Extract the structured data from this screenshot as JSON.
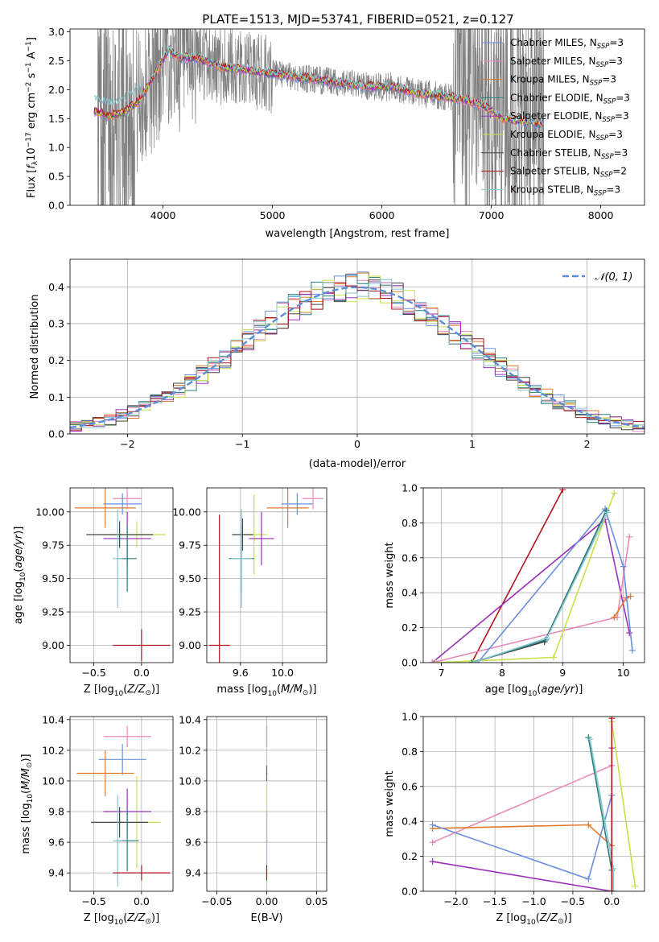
{
  "figure_title": "PLATE=1513, MJD=53741, FIBERID=0521, z=0.127",
  "colors": {
    "grid": "#b0b0b0",
    "gray_spectrum": "#808080",
    "normal_curve": "#5b8ed8"
  },
  "chart_data": [
    {
      "id": "spectrum",
      "type": "line",
      "title": "PLATE=1513, MJD=53741, FIBERID=0521, z=0.127",
      "xlabel": "wavelength [Angstrom, rest frame]",
      "ylabel": "Flux [f_λ 10^-17 erg cm^-2 s^-1 A^-1]",
      "xlim": [
        3150,
        8400
      ],
      "ylim": [
        0,
        3.05
      ],
      "xticks": [
        4000,
        5000,
        6000,
        7000,
        8000
      ],
      "yticks": [
        0.0,
        0.5,
        1.0,
        1.5,
        2.0,
        2.5,
        3.0
      ],
      "grid": false,
      "legend_position": "top-right",
      "legend": [
        {
          "label": "Chabrier MILES, N",
          "sub": "SSP",
          "tail": "=3",
          "color": "#6a8fe0"
        },
        {
          "label": "Salpeter MILES, N",
          "sub": "SSP",
          "tail": "=3",
          "color": "#e88ab8"
        },
        {
          "label": "Kroupa MILES, N",
          "sub": "SSP",
          "tail": "=3",
          "color": "#e07a2e"
        },
        {
          "label": "Chabrier ELODIE, N",
          "sub": "SSP",
          "tail": "=3",
          "color": "#2a7f7f"
        },
        {
          "label": "Salpeter ELODIE, N",
          "sub": "SSP",
          "tail": "=3",
          "color": "#9b30b8"
        },
        {
          "label": "Kroupa ELODIE, N",
          "sub": "SSP",
          "tail": "=3",
          "color": "#c8e04a"
        },
        {
          "label": "Chabrier STELIB, N",
          "sub": "SSP",
          "tail": "=3",
          "color": "#444444"
        },
        {
          "label": "Salpeter STELIB, N",
          "sub": "SSP",
          "tail": "=2",
          "color": "#b0141c"
        },
        {
          "label": "Kroupa STELIB, N",
          "sub": "SSP",
          "tail": "=3",
          "color": "#86c8d0"
        }
      ],
      "model_curve": {
        "x": [
          3350,
          3500,
          3650,
          3800,
          3950,
          4050,
          4150,
          4300,
          4500,
          4700,
          4900,
          5100,
          5300,
          5500,
          5700,
          5900,
          6100,
          6300,
          6500,
          6700,
          6900,
          7100,
          7300,
          7500
        ],
        "y": [
          1.65,
          1.55,
          1.6,
          1.85,
          2.35,
          2.7,
          2.55,
          2.55,
          2.4,
          2.35,
          2.3,
          2.25,
          2.2,
          2.15,
          2.1,
          2.05,
          2.05,
          1.95,
          1.9,
          1.85,
          1.75,
          1.5,
          1.45,
          1.4
        ]
      }
    },
    {
      "id": "residuals",
      "type": "line",
      "xlabel": "(data-model)/error",
      "ylabel": "Normed distribution",
      "xlim": [
        -2.5,
        2.5
      ],
      "ylim": [
        0,
        0.475
      ],
      "xticks": [
        -2,
        -1,
        0,
        1,
        2
      ],
      "yticks": [
        0.0,
        0.1,
        0.2,
        0.3,
        0.4
      ],
      "grid": true,
      "legend_position": "top-right",
      "legend_label": "N(0,1)"
    },
    {
      "id": "age_vs_Z",
      "type": "scatter",
      "xlabel": "Z [log10(Z/Z⊙)]",
      "ylabel": "age [log10(age/yr)]",
      "xlim": [
        -0.75,
        0.33
      ],
      "ylim": [
        8.87,
        10.18
      ],
      "xticks": [
        -0.5,
        0.0
      ],
      "yticks": [
        9.0,
        9.25,
        9.5,
        9.75,
        10.0
      ],
      "points": [
        {
          "x": -0.15,
          "y": 10.1,
          "xerr": 0.15,
          "yerr": 0.08,
          "color": "#e88ab8"
        },
        {
          "x": -0.2,
          "y": 10.06,
          "xerr": 0.2,
          "yerr": 0.08,
          "color": "#6a8fe0"
        },
        {
          "x": -0.38,
          "y": 10.03,
          "xerr": 0.32,
          "yerr": 0.15,
          "color": "#e07a2e"
        },
        {
          "x": -0.05,
          "y": 9.83,
          "xerr": 0.3,
          "yerr": 0.1,
          "color": "#c8e04a"
        },
        {
          "x": -0.15,
          "y": 9.8,
          "xerr": 0.25,
          "yerr": 0.2,
          "color": "#9b30b8"
        },
        {
          "x": -0.23,
          "y": 9.83,
          "xerr": 0.35,
          "yerr": 0.1,
          "color": "#444444"
        },
        {
          "x": -0.15,
          "y": 9.65,
          "xerr": 0.1,
          "yerr": 0.25,
          "color": "#2a7f7f"
        },
        {
          "x": -0.25,
          "y": 9.65,
          "xerr": 0.05,
          "yerr": 0.37,
          "color": "#86c8d0"
        },
        {
          "x": 0.0,
          "y": 9.0,
          "xerr": 0.3,
          "yerr": 0.12,
          "color": "#b0141c"
        }
      ]
    },
    {
      "id": "age_vs_mass",
      "type": "scatter",
      "xlabel": "mass [log10(M/M⊙)]",
      "ylabel": "",
      "xlim": [
        9.28,
        10.42
      ],
      "ylim": [
        8.87,
        10.18
      ],
      "xticks": [
        9.6,
        10.0
      ],
      "yticks": [
        9.0,
        9.25,
        9.5,
        9.75,
        10.0
      ],
      "points": [
        {
          "x": 10.29,
          "y": 10.1,
          "xerr": 0.1,
          "yerr": 0.08,
          "color": "#e88ab8"
        },
        {
          "x": 10.14,
          "y": 10.06,
          "xerr": 0.15,
          "yerr": 0.08,
          "color": "#6a8fe0"
        },
        {
          "x": 10.05,
          "y": 10.03,
          "xerr": 0.2,
          "yerr": 0.15,
          "color": "#e07a2e"
        },
        {
          "x": 9.73,
          "y": 9.83,
          "xerr": 0.12,
          "yerr": 0.3,
          "color": "#c8e04a"
        },
        {
          "x": 9.8,
          "y": 9.8,
          "xerr": 0.12,
          "yerr": 0.2,
          "color": "#9b30b8"
        },
        {
          "x": 9.62,
          "y": 9.83,
          "xerr": 0.1,
          "yerr": 0.12,
          "color": "#444444"
        },
        {
          "x": 9.61,
          "y": 9.65,
          "xerr": 0.12,
          "yerr": 0.25,
          "color": "#2a7f7f"
        },
        {
          "x": 9.61,
          "y": 9.65,
          "xerr": 0.1,
          "yerr": 0.37,
          "color": "#86c8d0"
        },
        {
          "x": 9.4,
          "y": 9.0,
          "xerr": 0.1,
          "yerr": 0.98,
          "color": "#b0141c"
        }
      ]
    },
    {
      "id": "weight_vs_age",
      "type": "line",
      "xlabel": "age [log10(age/yr)]",
      "ylabel": "mass weight",
      "xlim": [
        6.7,
        10.35
      ],
      "ylim": [
        0,
        1.0
      ],
      "xticks": [
        7,
        8,
        9,
        10
      ],
      "yticks": [
        0.0,
        0.2,
        0.4,
        0.6,
        0.8,
        1.0
      ],
      "series": [
        {
          "color": "#b0141c",
          "x": [
            7.5,
            9.0
          ],
          "y": [
            0.0,
            0.99
          ]
        },
        {
          "color": "#9b30b8",
          "x": [
            6.85,
            9.7,
            10.1
          ],
          "y": [
            0.0,
            0.82,
            0.17
          ]
        },
        {
          "color": "#e88ab8",
          "x": [
            6.85,
            9.9,
            10.1
          ],
          "y": [
            0.0,
            0.26,
            0.72
          ]
        },
        {
          "color": "#e07a2e",
          "x": [
            9.85,
            10.05,
            10.12
          ],
          "y": [
            0.26,
            0.37,
            0.38
          ]
        },
        {
          "color": "#6a8fe0",
          "x": [
            7.6,
            9.7,
            10.0,
            10.15
          ],
          "y": [
            0.0,
            0.88,
            0.55,
            0.07
          ]
        },
        {
          "color": "#c8e04a",
          "x": [
            6.9,
            8.85,
            9.85
          ],
          "y": [
            0.0,
            0.03,
            0.97
          ]
        },
        {
          "color": "#444444",
          "x": [
            7.5,
            8.7,
            9.72
          ],
          "y": [
            0.0,
            0.12,
            0.87
          ]
        },
        {
          "color": "#2a7f7f",
          "x": [
            7.5,
            8.72,
            9.72
          ],
          "y": [
            0.0,
            0.13,
            0.87
          ]
        },
        {
          "color": "#86c8d0",
          "x": [
            7.52,
            8.74,
            9.74
          ],
          "y": [
            0.0,
            0.14,
            0.86
          ]
        }
      ]
    },
    {
      "id": "mass_vs_Z",
      "type": "scatter",
      "xlabel": "Z [log10(Z/Z⊙)]",
      "ylabel": "mass [log10(M/M⊙)]",
      "xlim": [
        -0.75,
        0.33
      ],
      "ylim": [
        9.28,
        10.42
      ],
      "xticks": [
        -0.5,
        0.0
      ],
      "yticks": [
        9.4,
        9.6,
        9.8,
        10.0,
        10.2,
        10.4
      ],
      "points": [
        {
          "x": -0.15,
          "y": 10.29,
          "xerr": 0.25,
          "yerr": 0.07,
          "color": "#e88ab8"
        },
        {
          "x": -0.2,
          "y": 10.14,
          "xerr": 0.25,
          "yerr": 0.1,
          "color": "#6a8fe0"
        },
        {
          "x": -0.38,
          "y": 10.05,
          "xerr": 0.3,
          "yerr": 0.15,
          "color": "#e07a2e"
        },
        {
          "x": -0.05,
          "y": 9.73,
          "xerr": 0.25,
          "yerr": 0.3,
          "color": "#c8e04a"
        },
        {
          "x": -0.15,
          "y": 9.8,
          "xerr": 0.25,
          "yerr": 0.15,
          "color": "#9b30b8"
        },
        {
          "x": -0.23,
          "y": 9.73,
          "xerr": 0.3,
          "yerr": 0.1,
          "color": "#444444"
        },
        {
          "x": -0.15,
          "y": 9.61,
          "xerr": 0.12,
          "yerr": 0.2,
          "color": "#2a7f7f"
        },
        {
          "x": -0.25,
          "y": 9.61,
          "xerr": 0.05,
          "yerr": 0.3,
          "color": "#86c8d0"
        },
        {
          "x": 0.0,
          "y": 9.4,
          "xerr": 0.3,
          "yerr": 0.05,
          "color": "#b0141c"
        }
      ]
    },
    {
      "id": "mass_vs_ebv",
      "type": "scatter",
      "xlabel": "E(B-V)",
      "ylabel": "",
      "xlim": [
        -0.06,
        0.06
      ],
      "ylim": [
        9.28,
        10.42
      ],
      "xticks": [
        -0.05,
        0.0,
        0.05
      ],
      "yticks": [
        9.4,
        9.6,
        9.8,
        10.0,
        10.2,
        10.4
      ],
      "points": [
        {
          "x": 0.0,
          "y": 10.29,
          "yerr": 0.07,
          "color": "#e88ab8"
        },
        {
          "x": 0.0,
          "y": 10.05,
          "yerr": 0.05,
          "color": "#9b30b8"
        },
        {
          "x": 0.0,
          "y": 9.8,
          "yerr": 0.2,
          "color": "#c8e04a"
        },
        {
          "x": 0.0,
          "y": 9.61,
          "yerr": 0.2,
          "color": "#86c8d0"
        },
        {
          "x": 0.0,
          "y": 9.4,
          "yerr": 0.05,
          "color": "#b0141c"
        }
      ]
    },
    {
      "id": "weight_vs_Z",
      "type": "line",
      "xlabel": "Z [log10(Z/Z⊙)]",
      "ylabel": "mass weight",
      "xlim": [
        -2.42,
        0.42
      ],
      "ylim": [
        0,
        1.0
      ],
      "xticks": [
        -2.0,
        -1.5,
        -1.0,
        -0.5,
        0.0
      ],
      "yticks": [
        0.0,
        0.2,
        0.4,
        0.6,
        0.8,
        1.0
      ],
      "series": [
        {
          "color": "#e88ab8",
          "x": [
            -2.3,
            0.0
          ],
          "y": [
            0.28,
            0.72
          ]
        },
        {
          "color": "#e07a2e",
          "x": [
            -2.3,
            -0.3,
            0.0
          ],
          "y": [
            0.36,
            0.38,
            0.26
          ]
        },
        {
          "color": "#6a8fe0",
          "x": [
            -2.3,
            -0.3,
            0.0
          ],
          "y": [
            0.38,
            0.07,
            0.55
          ]
        },
        {
          "color": "#9b30b8",
          "x": [
            -2.3,
            0.0,
            0.0
          ],
          "y": [
            0.17,
            0.0,
            0.82
          ]
        },
        {
          "color": "#2a7f7f",
          "x": [
            -0.3,
            0.0,
            0.0
          ],
          "y": [
            0.88,
            0.12,
            0.0
          ]
        },
        {
          "color": "#86c8d0",
          "x": [
            -0.28,
            0.02,
            0.02
          ],
          "y": [
            0.87,
            0.13,
            0.0
          ]
        },
        {
          "color": "#c8e04a",
          "x": [
            0.0,
            0.3
          ],
          "y": [
            0.97,
            0.03
          ]
        },
        {
          "color": "#b0141c",
          "x": [
            0.0,
            0.0
          ],
          "y": [
            0.0,
            0.99
          ]
        }
      ]
    }
  ]
}
